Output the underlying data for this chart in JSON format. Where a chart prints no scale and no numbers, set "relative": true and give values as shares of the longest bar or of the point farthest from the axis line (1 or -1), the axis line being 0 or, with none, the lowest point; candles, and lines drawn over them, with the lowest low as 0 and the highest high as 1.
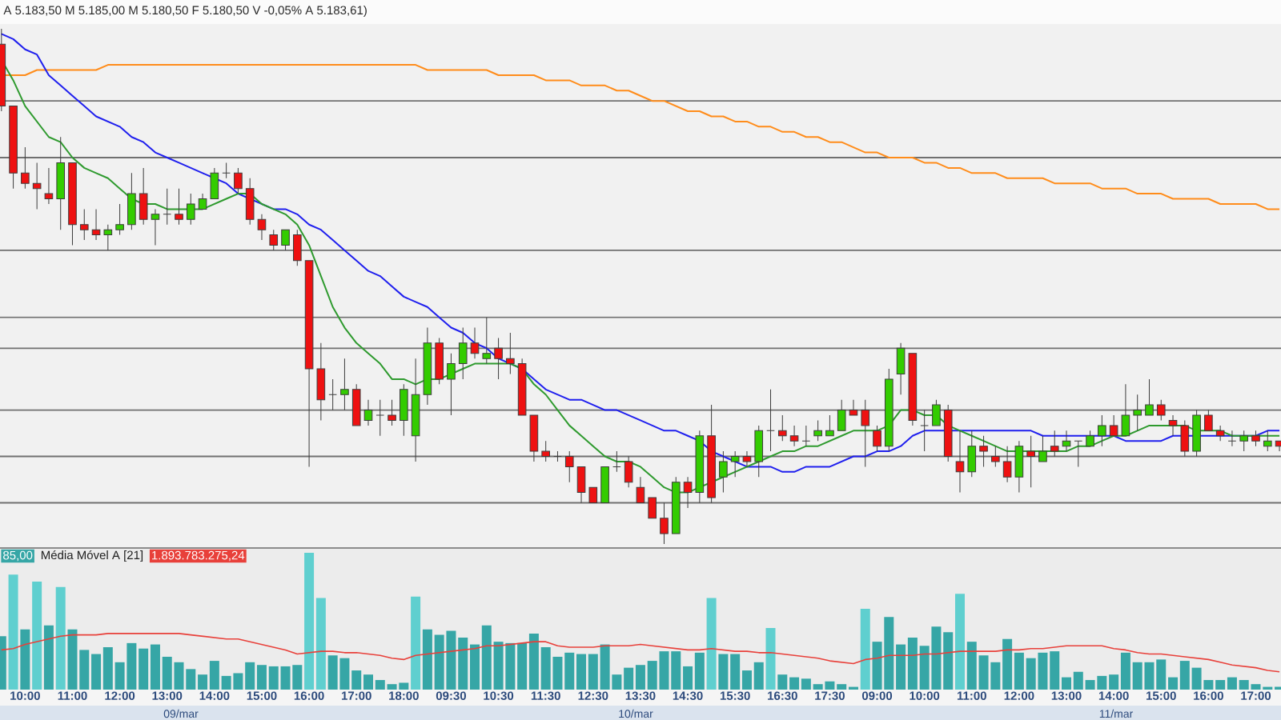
{
  "chart_data": [
    {
      "type": "candlestick",
      "relative": true,
      "tick_labels": false,
      "categories": [
        null,
        null,
        null,
        null,
        null,
        null,
        null,
        null,
        null,
        null,
        null,
        null,
        null,
        null,
        null,
        null,
        null,
        null,
        null,
        null,
        null,
        null,
        null,
        null,
        null,
        null,
        null,
        null,
        null,
        null,
        null,
        null,
        null,
        null,
        null,
        null,
        null,
        null,
        null,
        null,
        null,
        null,
        null,
        null,
        null,
        null,
        null,
        null,
        null,
        null,
        null,
        null,
        null,
        null,
        null,
        null,
        null,
        null,
        null,
        null,
        null,
        null,
        null,
        null,
        null,
        null,
        null,
        null,
        null,
        null,
        null,
        null,
        null,
        null,
        null,
        null,
        null,
        null,
        null,
        null,
        null,
        null,
        null,
        null,
        null,
        null,
        null,
        null,
        null,
        null,
        null,
        null,
        null,
        null,
        null,
        null,
        null,
        null,
        null,
        null,
        null,
        null,
        null,
        null,
        null,
        null,
        null,
        null,
        null
      ],
      "ohlc": [
        [
          0.97,
          1,
          0.84,
          0.85
        ],
        [
          0.85,
          0.85,
          0.69,
          0.72
        ],
        [
          0.72,
          0.77,
          0.69,
          0.7
        ],
        [
          0.7,
          0.74,
          0.65,
          0.69
        ],
        [
          0.68,
          0.73,
          0.66,
          0.67
        ],
        [
          0.67,
          0.79,
          0.61,
          0.74
        ],
        [
          0.74,
          0.74,
          0.58,
          0.62
        ],
        [
          0.62,
          0.65,
          0.59,
          0.61
        ],
        [
          0.61,
          0.65,
          0.59,
          0.6
        ],
        [
          0.6,
          0.62,
          0.57,
          0.61
        ],
        [
          0.61,
          0.66,
          0.6,
          0.62
        ],
        [
          0.62,
          0.72,
          0.61,
          0.68
        ],
        [
          0.68,
          0.73,
          0.62,
          0.63
        ],
        [
          0.63,
          0.65,
          0.58,
          0.64
        ],
        [
          0.64,
          0.69,
          0.62,
          0.64
        ],
        [
          0.64,
          0.69,
          0.62,
          0.63
        ],
        [
          0.63,
          0.68,
          0.62,
          0.66
        ],
        [
          0.65,
          0.68,
          0.65,
          0.67
        ],
        [
          0.67,
          0.73,
          0.67,
          0.72
        ],
        [
          0.72,
          0.74,
          0.71,
          0.72
        ],
        [
          0.72,
          0.73,
          0.68,
          0.69
        ],
        [
          0.69,
          0.71,
          0.62,
          0.63
        ],
        [
          0.63,
          0.64,
          0.59,
          0.61
        ],
        [
          0.6,
          0.61,
          0.57,
          0.58
        ],
        [
          0.58,
          0.61,
          0.57,
          0.61
        ],
        [
          0.6,
          0.61,
          0.54,
          0.55
        ],
        [
          0.55,
          0.55,
          0.15,
          0.34
        ],
        [
          0.34,
          0.39,
          0.24,
          0.28
        ],
        [
          0.29,
          0.32,
          0.26,
          0.29
        ],
        [
          0.29,
          0.36,
          0.26,
          0.3
        ],
        [
          0.3,
          0.31,
          0.23,
          0.23
        ],
        [
          0.24,
          0.28,
          0.23,
          0.26
        ],
        [
          0.25,
          0.28,
          0.21,
          0.25
        ],
        [
          0.25,
          0.28,
          0.23,
          0.24
        ],
        [
          0.24,
          0.31,
          0.21,
          0.3
        ],
        [
          0.21,
          0.36,
          0.16,
          0.29
        ],
        [
          0.29,
          0.42,
          0.27,
          0.39
        ],
        [
          0.39,
          0.4,
          0.31,
          0.32
        ],
        [
          0.32,
          0.37,
          0.25,
          0.35
        ],
        [
          0.35,
          0.42,
          0.32,
          0.39
        ],
        [
          0.39,
          0.42,
          0.36,
          0.37
        ],
        [
          0.36,
          0.44,
          0.35,
          0.37
        ],
        [
          0.38,
          0.4,
          0.32,
          0.36
        ],
        [
          0.36,
          0.41,
          0.33,
          0.35
        ],
        [
          0.35,
          0.36,
          0.25,
          0.25
        ],
        [
          0.25,
          0.25,
          0.16,
          0.18
        ],
        [
          0.18,
          0.2,
          0.16,
          0.17
        ],
        [
          0.17,
          0.18,
          0.16,
          0.17
        ],
        [
          0.17,
          0.18,
          0.12,
          0.15
        ],
        [
          0.15,
          0.15,
          0.08,
          0.1
        ],
        [
          0.11,
          0.11,
          0.08,
          0.08
        ],
        [
          0.08,
          0.15,
          0.08,
          0.15
        ],
        [
          0.15,
          0.18,
          0.14,
          0.15
        ],
        [
          0.16,
          0.17,
          0.11,
          0.12
        ],
        [
          0.11,
          0.13,
          0.08,
          0.08
        ],
        [
          0.09,
          0.09,
          0.05,
          0.05
        ],
        [
          0.05,
          0.08,
          0,
          0.02
        ],
        [
          0.02,
          0.13,
          0.02,
          0.12
        ],
        [
          0.12,
          0.13,
          0.07,
          0.1
        ],
        [
          0.1,
          0.22,
          0.08,
          0.21
        ],
        [
          0.21,
          0.27,
          0.08,
          0.09
        ],
        [
          0.13,
          0.18,
          0.1,
          0.16
        ],
        [
          0.16,
          0.18,
          0.13,
          0.17
        ],
        [
          0.17,
          0.18,
          0.15,
          0.16
        ],
        [
          0.16,
          0.23,
          0.13,
          0.22
        ],
        [
          0.22,
          0.3,
          0.18,
          0.22
        ],
        [
          0.22,
          0.25,
          0.2,
          0.21
        ],
        [
          0.21,
          0.23,
          0.19,
          0.2
        ],
        [
          0.2,
          0.23,
          0.19,
          0.2
        ],
        [
          0.21,
          0.24,
          0.2,
          0.22
        ],
        [
          0.21,
          0.25,
          0.21,
          0.22
        ],
        [
          0.22,
          0.28,
          0.22,
          0.26
        ],
        [
          0.26,
          0.28,
          0.25,
          0.25
        ],
        [
          0.26,
          0.28,
          0.15,
          0.23
        ],
        [
          0.22,
          0.23,
          0.18,
          0.19
        ],
        [
          0.19,
          0.34,
          0.18,
          0.32
        ],
        [
          0.33,
          0.39,
          0.29,
          0.38
        ],
        [
          0.37,
          0.37,
          0.23,
          0.24
        ],
        [
          0.23,
          0.26,
          0.18,
          0.23
        ],
        [
          0.23,
          0.28,
          0.23,
          0.27
        ],
        [
          0.26,
          0.27,
          0.16,
          0.17
        ],
        [
          0.16,
          0.22,
          0.1,
          0.14
        ],
        [
          0.14,
          0.22,
          0.13,
          0.19
        ],
        [
          0.19,
          0.21,
          0.15,
          0.18
        ],
        [
          0.17,
          0.19,
          0.15,
          0.16
        ],
        [
          0.16,
          0.19,
          0.12,
          0.13
        ],
        [
          0.13,
          0.2,
          0.1,
          0.19
        ],
        [
          0.18,
          0.21,
          0.11,
          0.17
        ],
        [
          0.16,
          0.21,
          0.16,
          0.18
        ],
        [
          0.19,
          0.22,
          0.17,
          0.18
        ],
        [
          0.19,
          0.22,
          0.18,
          0.2
        ],
        [
          0.2,
          0.2,
          0.15,
          0.2
        ],
        [
          0.19,
          0.22,
          0.19,
          0.21
        ],
        [
          0.21,
          0.25,
          0.19,
          0.23
        ],
        [
          0.23,
          0.25,
          0.21,
          0.21
        ],
        [
          0.21,
          0.31,
          0.21,
          0.25
        ],
        [
          0.25,
          0.29,
          0.22,
          0.26
        ],
        [
          0.25,
          0.32,
          0.25,
          0.27
        ],
        [
          0.27,
          0.28,
          0.24,
          0.25
        ],
        [
          0.24,
          0.25,
          0.21,
          0.23
        ],
        [
          0.23,
          0.24,
          0.17,
          0.18
        ],
        [
          0.18,
          0.26,
          0.17,
          0.25
        ],
        [
          0.25,
          0.26,
          0.22,
          0.22
        ],
        [
          0.22,
          0.23,
          0.2,
          0.21
        ],
        [
          0.2,
          0.22,
          0.19,
          0.2
        ],
        [
          0.2,
          0.22,
          0.18,
          0.21
        ],
        [
          0.21,
          0.22,
          0.19,
          0.2
        ],
        [
          0.19,
          0.22,
          0.18,
          0.2
        ],
        [
          0.2,
          0.2,
          0.18,
          0.19
        ]
      ],
      "colors": [
        "#ee1111",
        "#ee1111",
        "#ee1111",
        "#ee1111",
        "#ee1111",
        "#33cc00",
        "#ee1111",
        "#ee1111",
        "#ee1111",
        "#33cc00",
        "#33cc00",
        "#33cc00",
        "#ee1111",
        "#33cc00",
        "#333333",
        "#ee1111",
        "#33cc00",
        "#33cc00",
        "#33cc00",
        "#333333",
        "#ee1111",
        "#ee1111",
        "#ee1111",
        "#ee1111",
        "#33cc00",
        "#ee1111",
        "#ee1111",
        "#ee1111",
        "#333333",
        "#33cc00",
        "#ee1111",
        "#33cc00",
        "#333333",
        "#ee1111",
        "#33cc00",
        "#33cc00",
        "#33cc00",
        "#ee1111",
        "#33cc00",
        "#33cc00",
        "#ee1111",
        "#33cc00",
        "#ee1111",
        "#ee1111",
        "#ee1111",
        "#ee1111",
        "#ee1111",
        "#333333",
        "#ee1111",
        "#ee1111",
        "#ee1111",
        "#33cc00",
        "#333333",
        "#ee1111",
        "#ee1111",
        "#ee1111",
        "#ee1111",
        "#33cc00",
        "#ee1111",
        "#33cc00",
        "#ee1111",
        "#33cc00",
        "#33cc00",
        "#ee1111",
        "#33cc00",
        "#333333",
        "#ee1111",
        "#ee1111",
        "#333333",
        "#33cc00",
        "#33cc00",
        "#33cc00",
        "#ee1111",
        "#ee1111",
        "#ee1111",
        "#33cc00",
        "#33cc00",
        "#ee1111",
        "#333333",
        "#33cc00",
        "#ee1111",
        "#ee1111",
        "#33cc00",
        "#ee1111",
        "#ee1111",
        "#ee1111",
        "#33cc00",
        "#ee1111",
        "#33cc00",
        "#ee1111",
        "#33cc00",
        "#333333",
        "#33cc00",
        "#33cc00",
        "#ee1111",
        "#33cc00",
        "#33cc00",
        "#33cc00",
        "#ee1111",
        "#ee1111",
        "#ee1111",
        "#33cc00",
        "#ee1111",
        "#ee1111",
        "#333333",
        "#33cc00",
        "#ee1111",
        "#33cc00",
        "#ee1111"
      ],
      "series": [
        {
          "type": "line",
          "color": "#ff8c1a",
          "values": [
            0.91,
            0.91,
            0.91,
            0.92,
            0.92,
            0.92,
            0.92,
            0.92,
            0.92,
            0.93,
            0.93,
            0.93,
            0.93,
            0.93,
            0.93,
            0.93,
            0.93,
            0.93,
            0.93,
            0.93,
            0.93,
            0.93,
            0.93,
            0.93,
            0.93,
            0.93,
            0.93,
            0.93,
            0.93,
            0.93,
            0.93,
            0.93,
            0.93,
            0.93,
            0.93,
            0.93,
            0.92,
            0.92,
            0.92,
            0.92,
            0.92,
            0.92,
            0.91,
            0.91,
            0.91,
            0.91,
            0.9,
            0.9,
            0.9,
            0.89,
            0.89,
            0.89,
            0.88,
            0.88,
            0.87,
            0.86,
            0.86,
            0.85,
            0.84,
            0.84,
            0.83,
            0.83,
            0.82,
            0.82,
            0.81,
            0.81,
            0.8,
            0.8,
            0.79,
            0.79,
            0.78,
            0.78,
            0.77,
            0.76,
            0.76,
            0.75,
            0.75,
            0.75,
            0.74,
            0.74,
            0.73,
            0.73,
            0.72,
            0.72,
            0.72,
            0.71,
            0.71,
            0.71,
            0.71,
            0.7,
            0.7,
            0.7,
            0.7,
            0.69,
            0.69,
            0.69,
            0.68,
            0.68,
            0.68,
            0.67,
            0.67,
            0.67,
            0.67,
            0.66,
            0.66,
            0.66,
            0.66,
            0.65,
            0.65
          ]
        },
        {
          "type": "line",
          "color": "#1f1fee",
          "values": [
            0.99,
            0.98,
            0.96,
            0.95,
            0.91,
            0.89,
            0.87,
            0.85,
            0.83,
            0.82,
            0.81,
            0.79,
            0.78,
            0.76,
            0.75,
            0.74,
            0.73,
            0.72,
            0.71,
            0.7,
            0.68,
            0.67,
            0.66,
            0.65,
            0.65,
            0.64,
            0.62,
            0.61,
            0.59,
            0.57,
            0.55,
            0.53,
            0.52,
            0.5,
            0.48,
            0.47,
            0.46,
            0.44,
            0.42,
            0.41,
            0.39,
            0.38,
            0.36,
            0.35,
            0.34,
            0.32,
            0.3,
            0.29,
            0.28,
            0.28,
            0.27,
            0.26,
            0.26,
            0.25,
            0.24,
            0.23,
            0.22,
            0.22,
            0.21,
            0.2,
            0.18,
            0.17,
            0.16,
            0.15,
            0.15,
            0.15,
            0.14,
            0.14,
            0.15,
            0.15,
            0.15,
            0.16,
            0.17,
            0.17,
            0.18,
            0.18,
            0.19,
            0.21,
            0.22,
            0.22,
            0.22,
            0.22,
            0.22,
            0.22,
            0.22,
            0.22,
            0.22,
            0.22,
            0.21,
            0.21,
            0.21,
            0.21,
            0.21,
            0.21,
            0.21,
            0.2,
            0.2,
            0.2,
            0.2,
            0.21,
            0.21,
            0.21,
            0.21,
            0.21,
            0.21,
            0.21,
            0.21,
            0.22,
            0.22
          ]
        },
        {
          "type": "line",
          "color": "#2e9a2e",
          "values": [
            0.94,
            0.9,
            0.85,
            0.82,
            0.79,
            0.78,
            0.75,
            0.73,
            0.72,
            0.71,
            0.69,
            0.67,
            0.66,
            0.66,
            0.65,
            0.65,
            0.65,
            0.65,
            0.66,
            0.67,
            0.68,
            0.68,
            0.66,
            0.65,
            0.64,
            0.62,
            0.58,
            0.52,
            0.46,
            0.42,
            0.39,
            0.37,
            0.35,
            0.32,
            0.32,
            0.31,
            0.32,
            0.32,
            0.33,
            0.34,
            0.35,
            0.35,
            0.35,
            0.35,
            0.34,
            0.31,
            0.29,
            0.26,
            0.23,
            0.21,
            0.19,
            0.17,
            0.16,
            0.16,
            0.15,
            0.13,
            0.11,
            0.1,
            0.1,
            0.11,
            0.12,
            0.13,
            0.14,
            0.15,
            0.16,
            0.17,
            0.18,
            0.18,
            0.19,
            0.19,
            0.2,
            0.21,
            0.22,
            0.22,
            0.22,
            0.23,
            0.26,
            0.26,
            0.25,
            0.25,
            0.23,
            0.22,
            0.21,
            0.2,
            0.19,
            0.18,
            0.18,
            0.18,
            0.18,
            0.18,
            0.18,
            0.19,
            0.19,
            0.2,
            0.21,
            0.21,
            0.22,
            0.23,
            0.23,
            0.23,
            0.23,
            0.22,
            0.22,
            0.22,
            0.21,
            0.21,
            0.21,
            0.21,
            0.21
          ]
        }
      ],
      "ref_lines": [
        {
          "axis": "y",
          "value": 0.86,
          "color": "#707070"
        },
        {
          "axis": "y",
          "value": 0.75,
          "color": "#707070"
        },
        {
          "axis": "y",
          "value": 0.57,
          "color": "#707070"
        },
        {
          "axis": "y",
          "value": 0.44,
          "color": "#707070"
        },
        {
          "axis": "y",
          "value": 0.38,
          "color": "#707070"
        },
        {
          "axis": "y",
          "value": 0.26,
          "color": "#707070"
        },
        {
          "axis": "y",
          "value": 0.17,
          "color": "#707070"
        },
        {
          "axis": "y",
          "value": 0.08,
          "color": "#707070"
        }
      ],
      "annotations": [
        "A 5.183,50 M 5.185,00 M 5.180,50 F 5.180,50 V -0,05% A 5.183,61)"
      ]
    },
    {
      "type": "bar",
      "relative": true,
      "tick_labels": "x",
      "legend": "top left",
      "categories": [
        null,
        null,
        "10:00",
        null,
        null,
        null,
        "11:00",
        null,
        null,
        null,
        "12:00",
        null,
        null,
        null,
        "13:00",
        null,
        null,
        null,
        "14:00",
        null,
        null,
        null,
        "15:00",
        null,
        null,
        null,
        "16:00",
        null,
        null,
        null,
        "17:00",
        null,
        null,
        null,
        "18:00",
        null,
        null,
        null,
        "09:30",
        null,
        null,
        null,
        "10:30",
        null,
        null,
        null,
        "11:30",
        null,
        null,
        null,
        "12:30",
        null,
        null,
        null,
        "13:30",
        null,
        null,
        null,
        "14:30",
        null,
        null,
        null,
        "15:30",
        null,
        null,
        null,
        "16:30",
        null,
        null,
        null,
        "17:30",
        null,
        null,
        null,
        "09:00",
        null,
        null,
        null,
        "10:00",
        null,
        null,
        null,
        "11:00",
        null,
        null,
        null,
        "12:00",
        null,
        null,
        null,
        "13:00",
        null,
        null,
        null,
        "14:00",
        null,
        null,
        null,
        "15:00",
        null,
        null,
        null,
        "16:00",
        null,
        null,
        null,
        "17:00",
        null,
        null
      ],
      "series": [
        {
          "values": [
            0.39,
            0.84,
            0.44,
            0.79,
            0.47,
            0.75,
            0.44,
            0.29,
            0.26,
            0.31,
            0.2,
            0.34,
            0.3,
            0.33,
            0.24,
            0.2,
            0.15,
            0.11,
            0.21,
            0.1,
            0.12,
            0.2,
            0.18,
            0.17,
            0.17,
            0.18,
            1,
            0.67,
            0.25,
            0.23,
            0.14,
            0.11,
            0.07,
            0.04,
            0.05,
            0.68,
            0.44,
            0.4,
            0.43,
            0.38,
            0.33,
            0.47,
            0.35,
            0.34,
            0.34,
            0.41,
            0.31,
            0.24,
            0.27,
            0.26,
            0.26,
            0.33,
            0.11,
            0.16,
            0.18,
            0.21,
            0.28,
            0.28,
            0.17,
            0.27,
            0.67,
            0.26,
            0.26,
            0.14,
            0.2,
            0.45,
            0.11,
            0.09,
            0.08,
            0.04,
            0.06,
            0.04,
            0.02,
            0.59,
            0.35,
            0.53,
            0.33,
            0.38,
            0.32,
            0.46,
            0.42,
            0.7,
            0.35,
            0.25,
            0.2,
            0.37,
            0.27,
            0.23,
            0.27,
            0.28,
            0.09,
            0.13,
            0.07,
            0.1,
            0.11,
            0.27,
            0.2,
            0.2,
            0.22,
            0.09,
            0.21,
            0.16,
            0.07,
            0.07,
            0.09,
            0.07,
            0.04,
            0.02,
            0.02
          ],
          "colors": [
            "#36a6a6",
            "#5fcfcf",
            "#36a6a6",
            "#5fcfcf",
            "#36a6a6",
            "#5fcfcf",
            "#36a6a6",
            "#36a6a6",
            "#36a6a6",
            "#36a6a6",
            "#36a6a6",
            "#36a6a6",
            "#36a6a6",
            "#36a6a6",
            "#36a6a6",
            "#36a6a6",
            "#36a6a6",
            "#36a6a6",
            "#36a6a6",
            "#36a6a6",
            "#36a6a6",
            "#36a6a6",
            "#36a6a6",
            "#36a6a6",
            "#36a6a6",
            "#36a6a6",
            "#5fcfcf",
            "#5fcfcf",
            "#36a6a6",
            "#36a6a6",
            "#36a6a6",
            "#36a6a6",
            "#36a6a6",
            "#36a6a6",
            "#36a6a6",
            "#5fcfcf",
            "#36a6a6",
            "#36a6a6",
            "#36a6a6",
            "#36a6a6",
            "#36a6a6",
            "#36a6a6",
            "#36a6a6",
            "#36a6a6",
            "#36a6a6",
            "#36a6a6",
            "#36a6a6",
            "#36a6a6",
            "#36a6a6",
            "#36a6a6",
            "#36a6a6",
            "#36a6a6",
            "#36a6a6",
            "#36a6a6",
            "#36a6a6",
            "#36a6a6",
            "#36a6a6",
            "#36a6a6",
            "#36a6a6",
            "#36a6a6",
            "#5fcfcf",
            "#36a6a6",
            "#36a6a6",
            "#36a6a6",
            "#36a6a6",
            "#5fcfcf",
            "#36a6a6",
            "#36a6a6",
            "#36a6a6",
            "#36a6a6",
            "#36a6a6",
            "#36a6a6",
            "#36a6a6",
            "#5fcfcf",
            "#36a6a6",
            "#36a6a6",
            "#36a6a6",
            "#36a6a6",
            "#36a6a6",
            "#36a6a6",
            "#36a6a6",
            "#5fcfcf",
            "#36a6a6",
            "#36a6a6",
            "#36a6a6",
            "#36a6a6",
            "#36a6a6",
            "#36a6a6",
            "#36a6a6",
            "#36a6a6",
            "#36a6a6",
            "#36a6a6",
            "#36a6a6",
            "#36a6a6",
            "#36a6a6",
            "#36a6a6",
            "#36a6a6",
            "#36a6a6",
            "#36a6a6",
            "#36a6a6",
            "#36a6a6",
            "#36a6a6",
            "#36a6a6",
            "#36a6a6",
            "#36a6a6",
            "#36a6a6",
            "#36a6a6",
            "#36a6a6",
            "#36a6a6"
          ]
        },
        {
          "type": "line",
          "name": "Média Móvel A [21]",
          "color": "#e8403a",
          "values": [
            0.29,
            0.3,
            0.33,
            0.35,
            0.37,
            0.39,
            0.4,
            0.4,
            0.4,
            0.41,
            0.41,
            0.41,
            0.41,
            0.41,
            0.41,
            0.41,
            0.4,
            0.39,
            0.38,
            0.37,
            0.37,
            0.35,
            0.33,
            0.31,
            0.29,
            0.26,
            0.27,
            0.28,
            0.28,
            0.27,
            0.27,
            0.26,
            0.25,
            0.23,
            0.22,
            0.25,
            0.26,
            0.27,
            0.28,
            0.29,
            0.3,
            0.32,
            0.32,
            0.33,
            0.34,
            0.35,
            0.35,
            0.32,
            0.31,
            0.31,
            0.31,
            0.32,
            0.32,
            0.32,
            0.33,
            0.32,
            0.31,
            0.3,
            0.29,
            0.29,
            0.3,
            0.29,
            0.28,
            0.28,
            0.27,
            0.27,
            0.26,
            0.25,
            0.24,
            0.23,
            0.21,
            0.2,
            0.19,
            0.22,
            0.23,
            0.25,
            0.25,
            0.25,
            0.26,
            0.26,
            0.27,
            0.28,
            0.28,
            0.28,
            0.28,
            0.29,
            0.29,
            0.3,
            0.3,
            0.31,
            0.32,
            0.32,
            0.32,
            0.32,
            0.3,
            0.29,
            0.27,
            0.26,
            0.26,
            0.25,
            0.24,
            0.23,
            0.22,
            0.2,
            0.18,
            0.17,
            0.16,
            0.14,
            0.13
          ]
        }
      ],
      "annotations": [
        "85,00",
        "1.893.783.275,24",
        "09/mar",
        "10/mar",
        "11/mar"
      ]
    }
  ]
}
